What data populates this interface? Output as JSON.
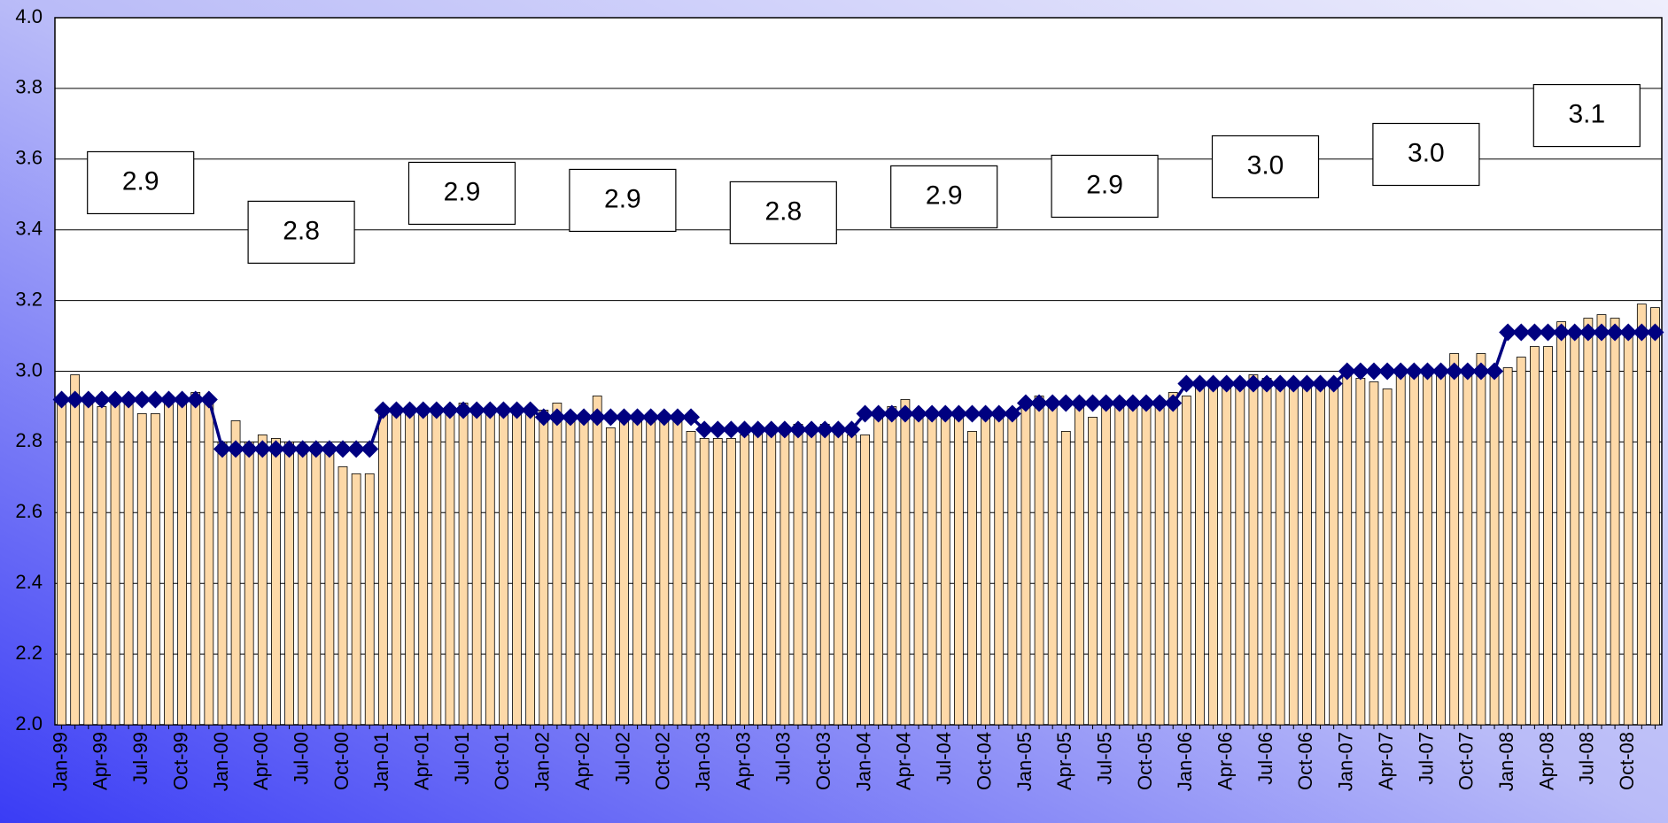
{
  "chart_data": {
    "type": "bar",
    "categories": [
      "Jan-99",
      null,
      null,
      "Apr-99",
      null,
      null,
      "Jul-99",
      null,
      null,
      "Oct-99",
      null,
      null,
      "Jan-00",
      null,
      null,
      "Apr-00",
      null,
      null,
      "Jul-00",
      null,
      null,
      "Oct-00",
      null,
      null,
      "Jan-01",
      null,
      null,
      "Apr-01",
      null,
      null,
      "Jul-01",
      null,
      null,
      "Oct-01",
      null,
      null,
      "Jan-02",
      null,
      null,
      "Apr-02",
      null,
      null,
      "Jul-02",
      null,
      null,
      "Oct-02",
      null,
      null,
      "Jan-03",
      null,
      null,
      "Apr-03",
      null,
      null,
      "Jul-03",
      null,
      null,
      "Oct-03",
      null,
      null,
      "Jan-04",
      null,
      null,
      "Apr-04",
      null,
      null,
      "Jul-04",
      null,
      null,
      "Oct-04",
      null,
      null,
      "Jan-05",
      null,
      null,
      "Apr-05",
      null,
      null,
      "Jul-05",
      null,
      null,
      "Oct-05",
      null,
      null,
      "Jan-06",
      null,
      null,
      "Apr-06",
      null,
      null,
      "Jul-06",
      null,
      null,
      "Oct-06",
      null,
      null,
      "Jan-07",
      null,
      null,
      "Apr-07",
      null,
      null,
      "Jul-07",
      null,
      null,
      "Oct-07",
      null,
      null,
      "Jan-08",
      null,
      null,
      "Apr-08",
      null,
      null,
      "Jul-08",
      null,
      null,
      "Oct-08",
      null,
      null
    ],
    "series": [
      {
        "type": "bar",
        "color": "#fdd9a8",
        "values": [
          2.92,
          2.99,
          2.92,
          2.9,
          2.92,
          2.93,
          2.88,
          2.88,
          2.92,
          2.93,
          2.94,
          2.92,
          2.8,
          2.86,
          2.8,
          2.82,
          2.81,
          2.8,
          2.78,
          2.78,
          2.77,
          2.73,
          2.71,
          2.71,
          2.88,
          2.89,
          2.9,
          2.89,
          2.89,
          2.89,
          2.91,
          2.9,
          2.89,
          2.89,
          2.9,
          2.88,
          2.89,
          2.91,
          2.88,
          2.87,
          2.93,
          2.84,
          2.87,
          2.88,
          2.87,
          2.86,
          2.87,
          2.83,
          2.81,
          2.81,
          2.81,
          2.82,
          2.83,
          2.84,
          2.83,
          2.85,
          2.84,
          2.85,
          2.84,
          2.82,
          2.82,
          2.88,
          2.9,
          2.92,
          2.88,
          2.88,
          2.87,
          2.88,
          2.83,
          2.88,
          2.88,
          2.89,
          2.91,
          2.93,
          2.91,
          2.83,
          2.91,
          2.87,
          2.91,
          2.91,
          2.91,
          2.92,
          2.92,
          2.94,
          2.93,
          2.96,
          2.97,
          2.96,
          2.96,
          2.99,
          2.98,
          2.96,
          2.96,
          2.97,
          2.96,
          2.96,
          2.99,
          2.98,
          2.97,
          2.95,
          3.0,
          2.99,
          3.0,
          3.01,
          3.05,
          3.0,
          3.05,
          3.0,
          3.01,
          3.04,
          3.07,
          3.07,
          3.14,
          3.12,
          3.15,
          3.16,
          3.15,
          3.12,
          3.19,
          3.18
        ]
      },
      {
        "type": "line",
        "color": "#000080",
        "values": [
          2.92,
          2.92,
          2.92,
          2.92,
          2.92,
          2.92,
          2.92,
          2.92,
          2.92,
          2.92,
          2.92,
          2.92,
          2.78,
          2.78,
          2.78,
          2.78,
          2.78,
          2.78,
          2.78,
          2.78,
          2.78,
          2.78,
          2.78,
          2.78,
          2.89,
          2.89,
          2.89,
          2.89,
          2.89,
          2.89,
          2.89,
          2.89,
          2.89,
          2.89,
          2.89,
          2.89,
          2.87,
          2.87,
          2.87,
          2.87,
          2.87,
          2.87,
          2.87,
          2.87,
          2.87,
          2.87,
          2.87,
          2.87,
          2.835,
          2.835,
          2.835,
          2.835,
          2.835,
          2.835,
          2.835,
          2.835,
          2.835,
          2.835,
          2.835,
          2.835,
          2.88,
          2.88,
          2.88,
          2.88,
          2.88,
          2.88,
          2.88,
          2.88,
          2.88,
          2.88,
          2.88,
          2.88,
          2.91,
          2.91,
          2.91,
          2.91,
          2.91,
          2.91,
          2.91,
          2.91,
          2.91,
          2.91,
          2.91,
          2.91,
          2.965,
          2.965,
          2.965,
          2.965,
          2.965,
          2.965,
          2.965,
          2.965,
          2.965,
          2.965,
          2.965,
          2.965,
          3.0,
          3.0,
          3.0,
          3.0,
          3.0,
          3.0,
          3.0,
          3.0,
          3.0,
          3.0,
          3.0,
          3.0,
          3.11,
          3.11,
          3.11,
          3.11,
          3.11,
          3.11,
          3.11,
          3.11,
          3.11,
          3.11,
          3.11,
          3.11
        ]
      }
    ],
    "annotations": [
      "2.9",
      "2.8",
      "2.9",
      "2.9",
      "2.8",
      "2.9",
      "2.9",
      "3.0",
      "3.0",
      "3.1"
    ],
    "ylim": [
      2.0,
      4.0
    ],
    "yticks": [
      {
        "value": 2.0,
        "label": "2.0"
      },
      2.2,
      2.4,
      2.6,
      2.8,
      {
        "value": 3.0,
        "label": "3.0"
      },
      3.2,
      3.4,
      3.6,
      3.8,
      {
        "value": 4.0,
        "label": "4.0"
      }
    ],
    "grid": true
  }
}
